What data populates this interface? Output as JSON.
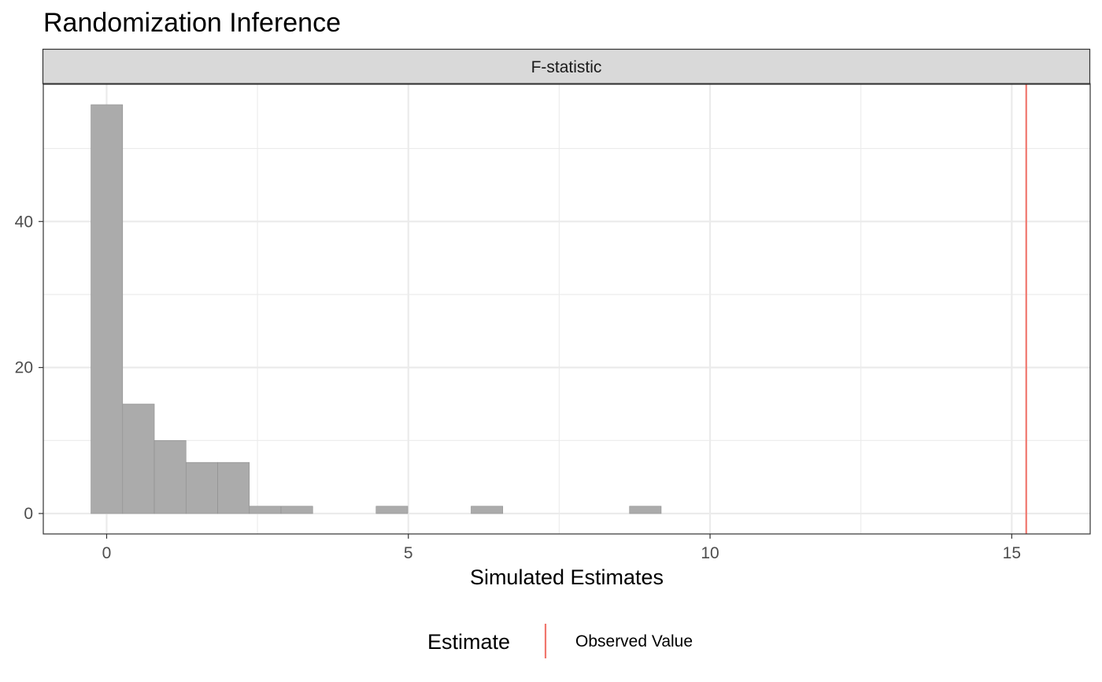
{
  "chart_data": {
    "type": "histogram",
    "title": "Randomization Inference",
    "facet_label": "F-statistic",
    "xlabel": "Simulated Estimates",
    "ylabel": "",
    "xlim": [
      -1.05,
      16.3
    ],
    "ylim": [
      -2.8,
      58.8
    ],
    "x_ticks": [
      0,
      5,
      10,
      15
    ],
    "x_tick_labels": [
      "0",
      "5",
      "10",
      "15"
    ],
    "y_ticks": [
      0,
      20,
      40
    ],
    "y_tick_labels": [
      "0",
      "20",
      "40"
    ],
    "x_minor_ticks": [
      2.5,
      7.5,
      12.5
    ],
    "y_minor_ticks": [
      10,
      30,
      50
    ],
    "grid": true,
    "bins": [
      {
        "x0": -0.26,
        "x1": 0.265,
        "count": 56
      },
      {
        "x0": 0.265,
        "x1": 0.79,
        "count": 15
      },
      {
        "x0": 0.79,
        "x1": 1.315,
        "count": 10
      },
      {
        "x0": 1.315,
        "x1": 1.84,
        "count": 7
      },
      {
        "x0": 1.84,
        "x1": 2.365,
        "count": 7
      },
      {
        "x0": 2.365,
        "x1": 2.89,
        "count": 1
      },
      {
        "x0": 2.89,
        "x1": 3.415,
        "count": 1
      },
      {
        "x0": 4.465,
        "x1": 4.99,
        "count": 1
      },
      {
        "x0": 6.04,
        "x1": 6.565,
        "count": 1
      },
      {
        "x0": 8.665,
        "x1": 9.19,
        "count": 1
      }
    ],
    "observed_value": 15.24,
    "colors": {
      "bar_fill": "#ababab",
      "bar_stroke": "#8f8f8f",
      "observed_line": "#f0776e",
      "strip_fill": "#d9d9d9",
      "grid": "#ebebeb",
      "panel_border": "#333333",
      "axis_text": "#4d4d4d"
    },
    "legend": {
      "title": "Estimate",
      "items": [
        {
          "label": "Observed Value",
          "color": "#f0776e"
        }
      ],
      "position": "bottom"
    }
  }
}
